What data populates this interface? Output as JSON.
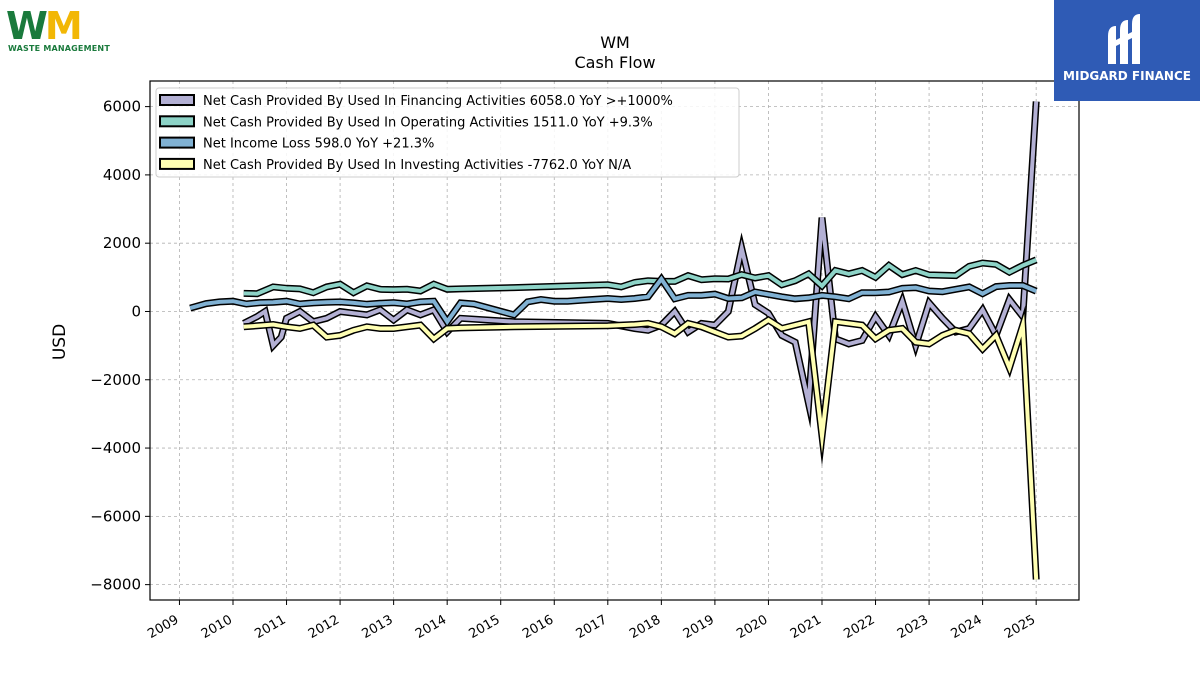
{
  "logos": {
    "company_wordmark": "WM",
    "company_subtitle": "WASTE MANAGEMENT",
    "sponsor_name": "MIDGARD FINANCE"
  },
  "chart_data": {
    "type": "line",
    "title": "WM",
    "subtitle": "Cash Flow",
    "xlabel": "",
    "ylabel": "USD",
    "xlim": [
      2008.45,
      2025.8
    ],
    "ylim": [
      -8450,
      6750
    ],
    "y_ticks": [
      -8000,
      -6000,
      -4000,
      -2000,
      0,
      2000,
      4000,
      6000
    ],
    "y_tick_labels": [
      "−8000",
      "−6000",
      "−4000",
      "−2000",
      "0",
      "2000",
      "4000",
      "6000"
    ],
    "x_ticks": [
      2009,
      2010,
      2011,
      2012,
      2013,
      2014,
      2015,
      2016,
      2017,
      2018,
      2019,
      2020,
      2021,
      2022,
      2023,
      2024,
      2025
    ],
    "x_tick_labels": [
      "2009",
      "2010",
      "2011",
      "2012",
      "2013",
      "2014",
      "2015",
      "2016",
      "2017",
      "2018",
      "2019",
      "2020",
      "2021",
      "2022",
      "2023",
      "2024",
      "2025"
    ],
    "grid": true,
    "legend_position": "top-left",
    "series": [
      {
        "name": "Net Cash Provided By Used In Financing Activities",
        "legend_label": "Net Cash Provided By Used In Financing Activities  6058.0 YoY >+1000%",
        "color": "#b3b0d4",
        "points": [
          [
            2010.2,
            -350
          ],
          [
            2010.45,
            -150
          ],
          [
            2010.6,
            0
          ],
          [
            2010.75,
            -1000
          ],
          [
            2010.9,
            -750
          ],
          [
            2011.0,
            -200
          ],
          [
            2011.25,
            0
          ],
          [
            2011.5,
            -300
          ],
          [
            2011.75,
            -200
          ],
          [
            2012.0,
            0
          ],
          [
            2012.25,
            -50
          ],
          [
            2012.5,
            -100
          ],
          [
            2012.75,
            50
          ],
          [
            2013.0,
            -250
          ],
          [
            2013.25,
            50
          ],
          [
            2013.5,
            -100
          ],
          [
            2013.75,
            50
          ],
          [
            2014.0,
            -600
          ],
          [
            2014.25,
            -200
          ],
          [
            2015.25,
            -300
          ],
          [
            2017.0,
            -350
          ],
          [
            2017.5,
            -500
          ],
          [
            2017.75,
            -550
          ],
          [
            2018.0,
            -400
          ],
          [
            2018.25,
            0
          ],
          [
            2018.5,
            -600
          ],
          [
            2018.75,
            -350
          ],
          [
            2019.0,
            -400
          ],
          [
            2019.25,
            0
          ],
          [
            2019.5,
            1850
          ],
          [
            2019.75,
            200
          ],
          [
            2020.0,
            -50
          ],
          [
            2020.25,
            -700
          ],
          [
            2020.5,
            -900
          ],
          [
            2020.75,
            -2700
          ],
          [
            2021.0,
            2750
          ],
          [
            2021.25,
            -800
          ],
          [
            2021.5,
            -950
          ],
          [
            2021.75,
            -850
          ],
          [
            2022.0,
            -150
          ],
          [
            2022.25,
            -700
          ],
          [
            2022.5,
            300
          ],
          [
            2022.75,
            -1000
          ],
          [
            2023.0,
            250
          ],
          [
            2023.25,
            -200
          ],
          [
            2023.5,
            -600
          ],
          [
            2023.75,
            -500
          ],
          [
            2024.0,
            50
          ],
          [
            2024.25,
            -700
          ],
          [
            2024.5,
            350
          ],
          [
            2024.75,
            -150
          ],
          [
            2025.0,
            6150
          ]
        ]
      },
      {
        "name": "Net Cash Provided By Used In Operating Activities",
        "legend_label": "Net Cash Provided By Used In Operating Activities  1511.0 YoY +9.3%",
        "color": "#8dd3c7",
        "points": [
          [
            2010.2,
            530
          ],
          [
            2010.45,
            520
          ],
          [
            2010.75,
            720
          ],
          [
            2011.0,
            680
          ],
          [
            2011.25,
            660
          ],
          [
            2011.5,
            550
          ],
          [
            2011.75,
            720
          ],
          [
            2012.0,
            800
          ],
          [
            2012.25,
            550
          ],
          [
            2012.5,
            750
          ],
          [
            2012.75,
            650
          ],
          [
            2013.0,
            640
          ],
          [
            2013.25,
            650
          ],
          [
            2013.5,
            600
          ],
          [
            2013.75,
            800
          ],
          [
            2014.0,
            650
          ],
          [
            2014.25,
            660
          ],
          [
            2015.25,
            700
          ],
          [
            2017.0,
            780
          ],
          [
            2017.25,
            720
          ],
          [
            2017.5,
            850
          ],
          [
            2017.75,
            900
          ],
          [
            2018.0,
            880
          ],
          [
            2018.25,
            880
          ],
          [
            2018.5,
            1050
          ],
          [
            2018.75,
            930
          ],
          [
            2019.0,
            960
          ],
          [
            2019.25,
            950
          ],
          [
            2019.5,
            1080
          ],
          [
            2019.75,
            980
          ],
          [
            2020.0,
            1050
          ],
          [
            2020.25,
            780
          ],
          [
            2020.5,
            900
          ],
          [
            2020.75,
            1100
          ],
          [
            2021.0,
            750
          ],
          [
            2021.25,
            1200
          ],
          [
            2021.5,
            1100
          ],
          [
            2021.75,
            1200
          ],
          [
            2022.0,
            1000
          ],
          [
            2022.25,
            1350
          ],
          [
            2022.5,
            1080
          ],
          [
            2022.75,
            1200
          ],
          [
            2023.0,
            1070
          ],
          [
            2023.25,
            1060
          ],
          [
            2023.5,
            1050
          ],
          [
            2023.75,
            1320
          ],
          [
            2024.0,
            1420
          ],
          [
            2024.25,
            1380
          ],
          [
            2024.5,
            1150
          ],
          [
            2024.75,
            1350
          ],
          [
            2025.0,
            1511
          ]
        ]
      },
      {
        "name": "Net Income Loss",
        "legend_label": "Net Income Loss  598.0 YoY +21.3%",
        "color": "#80b1d3",
        "points": [
          [
            2009.2,
            100
          ],
          [
            2009.5,
            230
          ],
          [
            2009.75,
            280
          ],
          [
            2010.0,
            300
          ],
          [
            2010.25,
            220
          ],
          [
            2010.5,
            260
          ],
          [
            2010.75,
            270
          ],
          [
            2011.0,
            300
          ],
          [
            2011.25,
            220
          ],
          [
            2011.5,
            250
          ],
          [
            2011.75,
            270
          ],
          [
            2012.0,
            280
          ],
          [
            2012.25,
            250
          ],
          [
            2012.5,
            210
          ],
          [
            2012.75,
            240
          ],
          [
            2013.0,
            260
          ],
          [
            2013.25,
            220
          ],
          [
            2013.5,
            280
          ],
          [
            2013.75,
            300
          ],
          [
            2014.0,
            -300
          ],
          [
            2014.25,
            250
          ],
          [
            2014.5,
            220
          ],
          [
            2015.25,
            -100
          ],
          [
            2015.5,
            280
          ],
          [
            2015.75,
            350
          ],
          [
            2016.0,
            300
          ],
          [
            2016.25,
            300
          ],
          [
            2016.5,
            330
          ],
          [
            2017.0,
            380
          ],
          [
            2017.25,
            350
          ],
          [
            2017.5,
            380
          ],
          [
            2017.75,
            430
          ],
          [
            2018.0,
            950
          ],
          [
            2018.25,
            370
          ],
          [
            2018.5,
            470
          ],
          [
            2018.75,
            470
          ],
          [
            2019.0,
            510
          ],
          [
            2019.25,
            380
          ],
          [
            2019.5,
            400
          ],
          [
            2019.75,
            570
          ],
          [
            2020.0,
            500
          ],
          [
            2020.25,
            430
          ],
          [
            2020.5,
            370
          ],
          [
            2020.75,
            400
          ],
          [
            2021.0,
            470
          ],
          [
            2021.25,
            430
          ],
          [
            2021.5,
            370
          ],
          [
            2021.75,
            550
          ],
          [
            2022.0,
            550
          ],
          [
            2022.25,
            570
          ],
          [
            2022.5,
            680
          ],
          [
            2022.75,
            700
          ],
          [
            2023.0,
            600
          ],
          [
            2023.25,
            580
          ],
          [
            2023.5,
            650
          ],
          [
            2023.75,
            720
          ],
          [
            2024.0,
            520
          ],
          [
            2024.25,
            730
          ],
          [
            2024.5,
            760
          ],
          [
            2024.75,
            760
          ],
          [
            2025.0,
            598
          ]
        ]
      },
      {
        "name": "Net Cash Provided By Used In Investing Activities",
        "legend_label": "Net Cash Provided By Used In Investing Activities  -7762.0 YoY N/A",
        "color": "#ffffb3",
        "points": [
          [
            2010.2,
            -450
          ],
          [
            2010.45,
            -420
          ],
          [
            2010.75,
            -380
          ],
          [
            2011.0,
            -450
          ],
          [
            2011.25,
            -500
          ],
          [
            2011.5,
            -400
          ],
          [
            2011.75,
            -750
          ],
          [
            2012.0,
            -700
          ],
          [
            2012.25,
            -550
          ],
          [
            2012.5,
            -450
          ],
          [
            2012.75,
            -500
          ],
          [
            2013.0,
            -500
          ],
          [
            2013.25,
            -450
          ],
          [
            2013.5,
            -400
          ],
          [
            2013.75,
            -800
          ],
          [
            2014.0,
            -500
          ],
          [
            2014.25,
            -480
          ],
          [
            2015.25,
            -450
          ],
          [
            2017.0,
            -420
          ],
          [
            2017.25,
            -400
          ],
          [
            2017.5,
            -380
          ],
          [
            2017.75,
            -350
          ],
          [
            2018.0,
            -450
          ],
          [
            2018.25,
            -650
          ],
          [
            2018.5,
            -350
          ],
          [
            2018.75,
            -450
          ],
          [
            2019.0,
            -600
          ],
          [
            2019.25,
            -750
          ],
          [
            2019.5,
            -720
          ],
          [
            2019.75,
            -500
          ],
          [
            2020.0,
            -250
          ],
          [
            2020.25,
            -500
          ],
          [
            2020.5,
            -400
          ],
          [
            2020.75,
            -300
          ],
          [
            2021.0,
            -3650
          ],
          [
            2021.25,
            -300
          ],
          [
            2021.5,
            -350
          ],
          [
            2021.75,
            -400
          ],
          [
            2022.0,
            -800
          ],
          [
            2022.25,
            -550
          ],
          [
            2022.5,
            -500
          ],
          [
            2022.75,
            -900
          ],
          [
            2023.0,
            -950
          ],
          [
            2023.25,
            -700
          ],
          [
            2023.5,
            -550
          ],
          [
            2023.75,
            -650
          ],
          [
            2024.0,
            -1100
          ],
          [
            2024.25,
            -700
          ],
          [
            2024.5,
            -1650
          ],
          [
            2024.75,
            -400
          ],
          [
            2025.0,
            -7850
          ]
        ]
      }
    ]
  }
}
